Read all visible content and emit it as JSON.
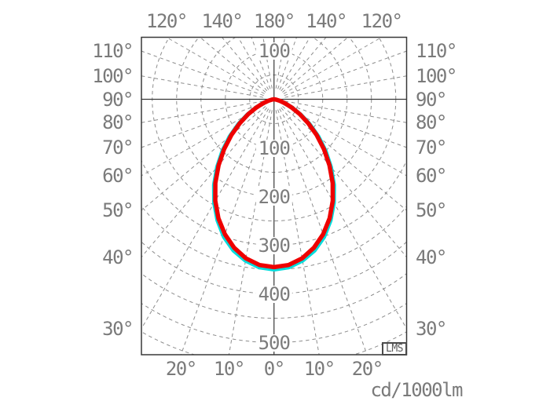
{
  "watermark": {
    "text": "LMS"
  },
  "colors": {
    "background": "#ffffff",
    "grid": "#8d8d8d",
    "axis": "#383838",
    "frame": "#383838",
    "label": "#7a7a7a",
    "curve_red": "#ee0000",
    "curve_cyan": "#00dcdc"
  },
  "chart_data": {
    "type": "line",
    "coordinate_system": "polar-photometric",
    "title": "",
    "unit_label": "cd/1000lm",
    "angle_unit": "deg",
    "gamma_labels": {
      "top": [
        "120°",
        "140°",
        "180°",
        "140°",
        "120°"
      ],
      "bottom": [
        "20°",
        "10°",
        "0°",
        "10°",
        "20°"
      ],
      "left": [
        "110°",
        "100°",
        "90°",
        "80°",
        "70°",
        "60°",
        "50°",
        "40°",
        "30°"
      ],
      "right": [
        "110°",
        "100°",
        "90°",
        "80°",
        "70°",
        "60°",
        "50°",
        "40°",
        "30°"
      ]
    },
    "radial_axis": {
      "labels_above_center": [
        "100"
      ],
      "labels_below_center": [
        "100",
        "200",
        "300",
        "400",
        "500"
      ],
      "ring_step": 50,
      "max_ring": 550,
      "ray_step_deg": 10
    },
    "series": [
      {
        "name": "cyan-curve",
        "color": "#00dcdc",
        "stroke_width": 5,
        "angles_deg": [
          0,
          5,
          10,
          15,
          20,
          25,
          30,
          35,
          40,
          45,
          50,
          55,
          60,
          65,
          70,
          75,
          80,
          85,
          90
        ],
        "values": [
          350,
          347,
          337,
          322,
          301,
          275,
          246,
          215,
          182,
          150,
          119,
          90,
          64,
          42,
          25,
          13,
          5,
          1,
          0
        ]
      },
      {
        "name": "red-curve",
        "color": "#ee0000",
        "stroke_width": 5.5,
        "angles_deg": [
          0,
          5,
          10,
          15,
          20,
          25,
          30,
          35,
          40,
          45,
          50,
          55,
          60,
          65,
          70,
          75,
          80,
          85,
          90
        ],
        "values": [
          345,
          342,
          332,
          316,
          295,
          270,
          241,
          210,
          177,
          145,
          114,
          86,
          61,
          40,
          24,
          12,
          4,
          1,
          0
        ]
      }
    ]
  }
}
